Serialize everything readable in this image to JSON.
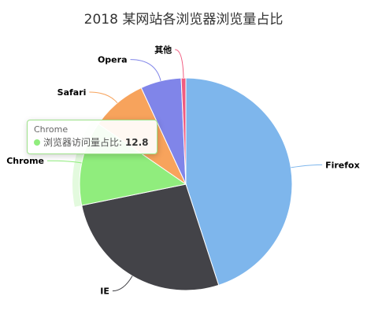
{
  "chart_data": {
    "type": "pie",
    "title": "2018 某网站各浏览器浏览量占比",
    "slices": [
      {
        "name": "Firefox",
        "value": 45.0,
        "color": "#7eb6ec"
      },
      {
        "name": "IE",
        "value": 26.8,
        "color": "#434348"
      },
      {
        "name": "Chrome",
        "value": 12.8,
        "color": "#90ed7d"
      },
      {
        "name": "Safari",
        "value": 8.5,
        "color": "#f7a35c"
      },
      {
        "name": "Opera",
        "value": 6.2,
        "color": "#8085e9"
      },
      {
        "name": "其他",
        "value": 0.7,
        "color": "#f15c80"
      }
    ],
    "hovered": "Chrome"
  },
  "tooltip": {
    "name": "Chrome",
    "series_label": "浏览器访问量占比:",
    "value": "12.8",
    "color": "#90ed7d"
  }
}
